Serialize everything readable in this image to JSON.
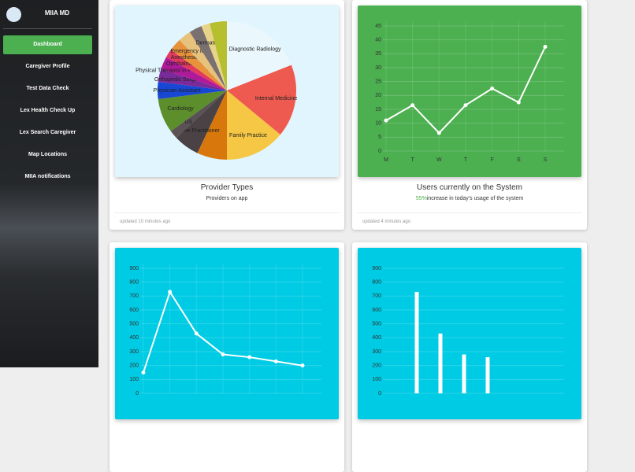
{
  "sidebar": {
    "brand": "MIIA MD",
    "active": 0,
    "nav": [
      "Dashboard",
      "Caregiver Profile",
      "Test Data Check",
      "Lex Health Check Up",
      "Lex Search Caregiver",
      "Map Locations",
      "MIIA notifications"
    ]
  },
  "chart_data": [
    {
      "type": "pie",
      "title": "Provider Types",
      "subtitle": "Providers on app",
      "footer": "updated 10 minutes ago",
      "background": "#e1f5fe",
      "categories": [
        "Diagnostic Radiology",
        "Internal Medicine",
        "Family Practice",
        null,
        "Nurse Practitioner",
        "US",
        "Cardiology",
        "Physician Assistant",
        "Orthopedic Surgery",
        "Physical Therapist in Private Practice",
        "Ophthalmology",
        "Anesthesiology",
        "Emergency Medicine",
        null,
        "Dermatology",
        null
      ],
      "values": [
        19,
        17,
        14,
        7,
        6,
        2,
        8,
        4,
        3,
        3,
        2,
        3,
        3,
        3,
        2,
        4
      ],
      "colors": [
        "#eaf7fd",
        "#ee5a4f",
        "#f5c744",
        "#d8780c",
        "#4a4244",
        "#5a5254",
        "#5c8f2c",
        "#1747d4",
        "#7a2a9a",
        "#b01a9a",
        "#e23a5e",
        "#e8923c",
        "#e6c27c",
        "#7a7070",
        "#e8d488",
        "#b6bf2e"
      ]
    },
    {
      "type": "line",
      "title": "Users currently on the System",
      "subtitle_highlight": "55%",
      "subtitle": "increase in today's usage of the system",
      "footer": "updated 4 minutes ago",
      "background": "#4caf50",
      "color": "#ffffff",
      "grid": true,
      "categories": [
        "M",
        "T",
        "W",
        "T",
        "F",
        "S",
        "S"
      ],
      "values": [
        11,
        16.5,
        6.5,
        16.5,
        22.5,
        17.5,
        37.5
      ],
      "ylim": [
        0,
        45
      ],
      "yticks": [
        0,
        5,
        10,
        15,
        20,
        25,
        30,
        35,
        40,
        45
      ]
    },
    {
      "type": "line",
      "background": "#00cbe4",
      "color": "#ffffff",
      "grid": true,
      "categories": [
        null,
        null,
        null,
        null,
        null,
        null,
        null
      ],
      "values": [
        150,
        730,
        430,
        280,
        260,
        230,
        200
      ],
      "ylim": [
        0,
        900
      ],
      "yticks": [
        0,
        100,
        200,
        300,
        400,
        500,
        600,
        700,
        800,
        900
      ]
    },
    {
      "type": "bar",
      "background": "#00cbe4",
      "color": "#ffffff",
      "grid": true,
      "categories": [
        null,
        null,
        null,
        null,
        null,
        null,
        null
      ],
      "values": [
        null,
        730,
        430,
        280,
        260,
        null,
        null
      ],
      "ylim": [
        0,
        900
      ],
      "yticks": [
        0,
        100,
        200,
        300,
        400,
        500,
        600,
        700,
        800,
        900
      ]
    }
  ]
}
